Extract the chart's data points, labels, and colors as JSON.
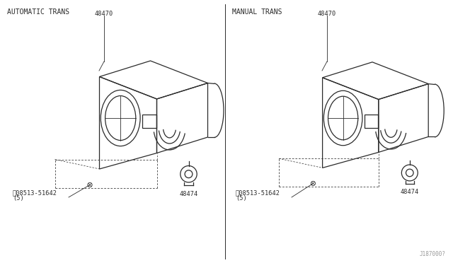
{
  "background_color": "#ffffff",
  "line_color": "#2a2a2a",
  "text_color": "#2a2a2a",
  "title_left": "AUTOMATIC TRANS",
  "title_right": "MANUAL TRANS",
  "label_48470": "48470",
  "label_48474": "48474",
  "label_screw_line1": "Ⓝ08513-51642",
  "label_screw_line2": "(5)",
  "watermark": "J187000?",
  "font_size_title": 7.0,
  "font_size_label": 6.2,
  "font_size_watermark": 5.5
}
